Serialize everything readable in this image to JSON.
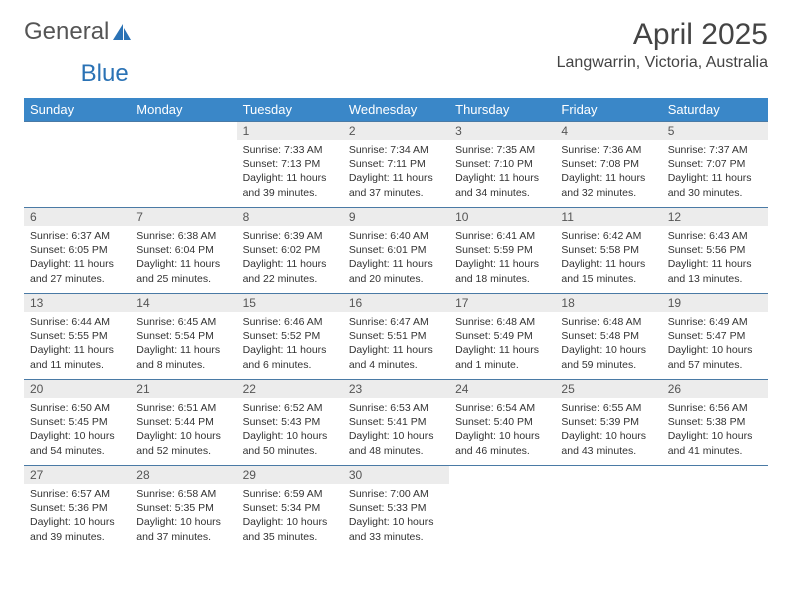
{
  "logo": {
    "part1": "General",
    "part2": "Blue"
  },
  "title": "April 2025",
  "location": "Langwarrin, Victoria, Australia",
  "colors": {
    "header_bg": "#3a87c8",
    "header_text": "#ffffff",
    "daynum_bg": "#ececec",
    "row_border": "#4a7aa5",
    "logo_blue": "#2a72b5"
  },
  "daynames": [
    "Sunday",
    "Monday",
    "Tuesday",
    "Wednesday",
    "Thursday",
    "Friday",
    "Saturday"
  ],
  "weeks": [
    [
      null,
      null,
      {
        "n": "1",
        "sr": "7:33 AM",
        "ss": "7:13 PM",
        "dl": "11 hours and 39 minutes."
      },
      {
        "n": "2",
        "sr": "7:34 AM",
        "ss": "7:11 PM",
        "dl": "11 hours and 37 minutes."
      },
      {
        "n": "3",
        "sr": "7:35 AM",
        "ss": "7:10 PM",
        "dl": "11 hours and 34 minutes."
      },
      {
        "n": "4",
        "sr": "7:36 AM",
        "ss": "7:08 PM",
        "dl": "11 hours and 32 minutes."
      },
      {
        "n": "5",
        "sr": "7:37 AM",
        "ss": "7:07 PM",
        "dl": "11 hours and 30 minutes."
      }
    ],
    [
      {
        "n": "6",
        "sr": "6:37 AM",
        "ss": "6:05 PM",
        "dl": "11 hours and 27 minutes."
      },
      {
        "n": "7",
        "sr": "6:38 AM",
        "ss": "6:04 PM",
        "dl": "11 hours and 25 minutes."
      },
      {
        "n": "8",
        "sr": "6:39 AM",
        "ss": "6:02 PM",
        "dl": "11 hours and 22 minutes."
      },
      {
        "n": "9",
        "sr": "6:40 AM",
        "ss": "6:01 PM",
        "dl": "11 hours and 20 minutes."
      },
      {
        "n": "10",
        "sr": "6:41 AM",
        "ss": "5:59 PM",
        "dl": "11 hours and 18 minutes."
      },
      {
        "n": "11",
        "sr": "6:42 AM",
        "ss": "5:58 PM",
        "dl": "11 hours and 15 minutes."
      },
      {
        "n": "12",
        "sr": "6:43 AM",
        "ss": "5:56 PM",
        "dl": "11 hours and 13 minutes."
      }
    ],
    [
      {
        "n": "13",
        "sr": "6:44 AM",
        "ss": "5:55 PM",
        "dl": "11 hours and 11 minutes."
      },
      {
        "n": "14",
        "sr": "6:45 AM",
        "ss": "5:54 PM",
        "dl": "11 hours and 8 minutes."
      },
      {
        "n": "15",
        "sr": "6:46 AM",
        "ss": "5:52 PM",
        "dl": "11 hours and 6 minutes."
      },
      {
        "n": "16",
        "sr": "6:47 AM",
        "ss": "5:51 PM",
        "dl": "11 hours and 4 minutes."
      },
      {
        "n": "17",
        "sr": "6:48 AM",
        "ss": "5:49 PM",
        "dl": "11 hours and 1 minute."
      },
      {
        "n": "18",
        "sr": "6:48 AM",
        "ss": "5:48 PM",
        "dl": "10 hours and 59 minutes."
      },
      {
        "n": "19",
        "sr": "6:49 AM",
        "ss": "5:47 PM",
        "dl": "10 hours and 57 minutes."
      }
    ],
    [
      {
        "n": "20",
        "sr": "6:50 AM",
        "ss": "5:45 PM",
        "dl": "10 hours and 54 minutes."
      },
      {
        "n": "21",
        "sr": "6:51 AM",
        "ss": "5:44 PM",
        "dl": "10 hours and 52 minutes."
      },
      {
        "n": "22",
        "sr": "6:52 AM",
        "ss": "5:43 PM",
        "dl": "10 hours and 50 minutes."
      },
      {
        "n": "23",
        "sr": "6:53 AM",
        "ss": "5:41 PM",
        "dl": "10 hours and 48 minutes."
      },
      {
        "n": "24",
        "sr": "6:54 AM",
        "ss": "5:40 PM",
        "dl": "10 hours and 46 minutes."
      },
      {
        "n": "25",
        "sr": "6:55 AM",
        "ss": "5:39 PM",
        "dl": "10 hours and 43 minutes."
      },
      {
        "n": "26",
        "sr": "6:56 AM",
        "ss": "5:38 PM",
        "dl": "10 hours and 41 minutes."
      }
    ],
    [
      {
        "n": "27",
        "sr": "6:57 AM",
        "ss": "5:36 PM",
        "dl": "10 hours and 39 minutes."
      },
      {
        "n": "28",
        "sr": "6:58 AM",
        "ss": "5:35 PM",
        "dl": "10 hours and 37 minutes."
      },
      {
        "n": "29",
        "sr": "6:59 AM",
        "ss": "5:34 PM",
        "dl": "10 hours and 35 minutes."
      },
      {
        "n": "30",
        "sr": "7:00 AM",
        "ss": "5:33 PM",
        "dl": "10 hours and 33 minutes."
      },
      null,
      null,
      null
    ]
  ],
  "labels": {
    "sunrise": "Sunrise:",
    "sunset": "Sunset:",
    "daylight": "Daylight:"
  }
}
